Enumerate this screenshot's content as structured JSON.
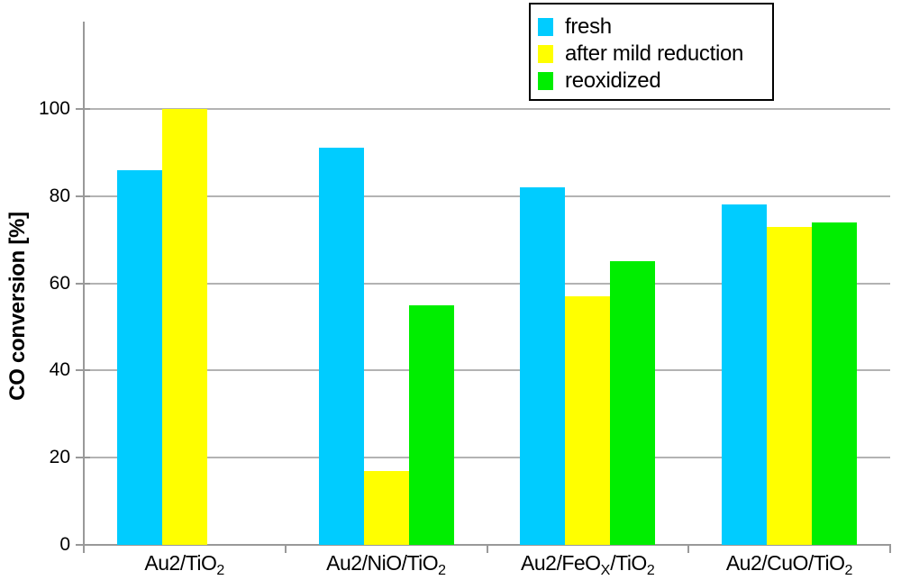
{
  "chart_data": {
    "type": "bar",
    "title": "",
    "xlabel": "",
    "ylabel": "CO conversion [%]",
    "ylim": [
      0,
      120
    ],
    "yticks": [
      0,
      20,
      40,
      60,
      80,
      100
    ],
    "grid": "horizontal gridlines only",
    "legend_position": "top-center, inside black-bordered box",
    "categories": [
      "Au2/TiO2",
      "Au2/NiO/TiO2",
      "Au2/FeOX/TiO2",
      "Au2/CuO/TiO2"
    ],
    "category_label_parts": [
      [
        {
          "t": "Au2/TiO"
        },
        {
          "t": "2",
          "sub": true
        }
      ],
      [
        {
          "t": "Au2/NiO/TiO"
        },
        {
          "t": "2",
          "sub": true
        }
      ],
      [
        {
          "t": "Au2/FeO"
        },
        {
          "t": "X",
          "sub": true
        },
        {
          "t": "/TiO"
        },
        {
          "t": "2",
          "sub": true
        }
      ],
      [
        {
          "t": "Au2/CuO/TiO"
        },
        {
          "t": "2",
          "sub": true
        }
      ]
    ],
    "series": [
      {
        "name": "fresh",
        "color": "#00CCFF",
        "values": [
          86,
          91,
          82,
          78
        ]
      },
      {
        "name": "after mild reduction",
        "color": "#FFFF00",
        "values": [
          100,
          17,
          57,
          73
        ]
      },
      {
        "name": "reoxidized",
        "color": "#00EE00",
        "values": [
          null,
          55,
          65,
          74
        ]
      }
    ],
    "colors": {
      "axis": "#999999",
      "gridline": "#b3b3b3",
      "text": "#000000",
      "background": "#ffffff"
    }
  }
}
